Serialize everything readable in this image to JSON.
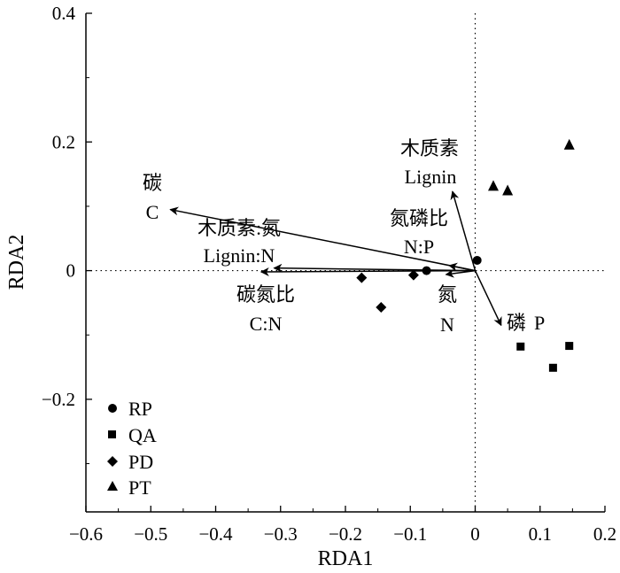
{
  "chart_data": {
    "type": "scatter",
    "title": "",
    "xlabel": "RDA1",
    "ylabel": "RDA2",
    "xlim": [
      -0.6,
      0.2
    ],
    "ylim": [
      -0.375,
      0.4
    ],
    "xticks": [
      "−0.6",
      "−0.5",
      "−0.4",
      "−0.3",
      "−0.2",
      "−0.1",
      "0",
      "0.1",
      "0.2"
    ],
    "yticks": [
      "0.4",
      "0.2",
      "0",
      "−0.2"
    ],
    "legend_position": "bottom-left",
    "reference_lines": {
      "x": 0,
      "y": 0,
      "style": "dotted"
    },
    "series": [
      {
        "name": "RP",
        "marker": "circle",
        "points": [
          [
            -0.075,
            0.0
          ],
          [
            0.003,
            0.016
          ]
        ]
      },
      {
        "name": "QA",
        "marker": "square",
        "points": [
          [
            0.07,
            -0.118
          ],
          [
            0.12,
            -0.151
          ],
          [
            0.145,
            -0.117
          ]
        ]
      },
      {
        "name": "PD",
        "marker": "diamond",
        "points": [
          [
            -0.175,
            -0.011
          ],
          [
            -0.145,
            -0.057
          ],
          [
            -0.095,
            -0.007
          ]
        ]
      },
      {
        "name": "PT",
        "marker": "triangle",
        "points": [
          [
            0.028,
            0.131
          ],
          [
            0.05,
            0.124
          ],
          [
            0.145,
            0.195
          ]
        ]
      }
    ],
    "arrows": [
      {
        "label_cn": "碳",
        "label_en": "C",
        "end": [
          -0.47,
          0.095
        ]
      },
      {
        "label_cn": "木质素:氮",
        "label_en": "Lignin:N",
        "end": [
          -0.31,
          0.004
        ]
      },
      {
        "label_cn": "碳氮比",
        "label_en": "C:N",
        "end": [
          -0.33,
          -0.002
        ]
      },
      {
        "label_cn": "木质素",
        "label_en": "Lignin",
        "end": [
          -0.035,
          0.123
        ]
      },
      {
        "label_cn": "氮磷比",
        "label_en": "N:P",
        "end": [
          -0.04,
          0.008
        ]
      },
      {
        "label_cn": "氮",
        "label_en": "N",
        "end": [
          -0.045,
          -0.006
        ]
      },
      {
        "label_cn": "磷",
        "label_en": "P",
        "end": [
          0.04,
          -0.085
        ]
      }
    ]
  }
}
